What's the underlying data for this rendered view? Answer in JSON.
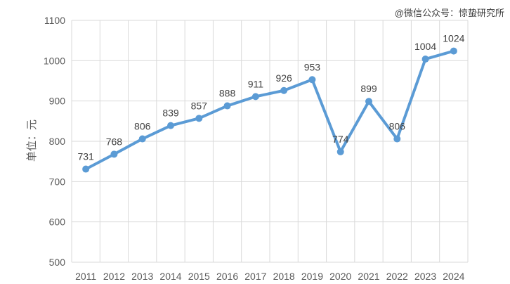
{
  "chart_data": {
    "type": "line",
    "categories": [
      "2011",
      "2012",
      "2013",
      "2014",
      "2015",
      "2016",
      "2017",
      "2018",
      "2019",
      "2020",
      "2021",
      "2022",
      "2023",
      "2024"
    ],
    "series": [
      {
        "name": "单位：元",
        "values": [
          731,
          768,
          806,
          839,
          857,
          888,
          911,
          926,
          953,
          774,
          899,
          806,
          1004,
          1024
        ],
        "color": "#5b9bd5"
      }
    ],
    "ylabel": "单位：元",
    "xlabel": "",
    "title": "",
    "ylim": [
      500,
      1100
    ],
    "yticks": [
      500,
      600,
      700,
      800,
      900,
      1000,
      1100
    ],
    "grid": true,
    "legend": "none"
  },
  "watermark": "@微信公众号：惊蛰研究所"
}
